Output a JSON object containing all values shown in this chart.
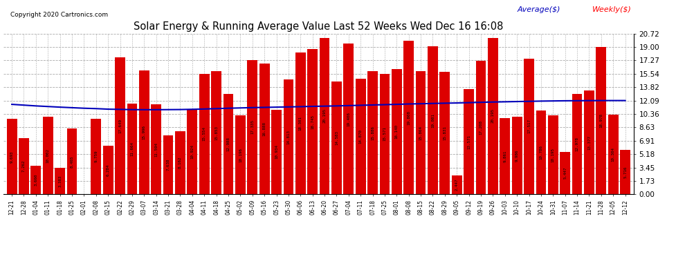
{
  "title": "Solar Energy & Running Average Value Last 52 Weeks Wed Dec 16 16:08",
  "copyright": "Copyright 2020 Cartronics.com",
  "legend_average": "Average($)",
  "legend_weekly": "Weekly($)",
  "bar_color": "#dd0000",
  "avg_line_color": "#0000bb",
  "background_color": "#ffffff",
  "plot_bg_color": "#ffffff",
  "grid_color": "#aaaaaa",
  "categories": [
    "12-21",
    "12-28",
    "01-04",
    "01-11",
    "01-18",
    "01-25",
    "02-01",
    "02-08",
    "02-15",
    "02-22",
    "02-29",
    "03-07",
    "03-14",
    "03-21",
    "03-28",
    "04-04",
    "04-11",
    "04-18",
    "04-25",
    "05-02",
    "05-09",
    "05-16",
    "05-23",
    "05-30",
    "06-06",
    "06-13",
    "06-20",
    "06-27",
    "07-04",
    "07-11",
    "07-18",
    "07-25",
    "08-01",
    "08-08",
    "08-15",
    "08-22",
    "08-29",
    "09-05",
    "09-12",
    "09-19",
    "09-26",
    "10-03",
    "10-10",
    "10-17",
    "10-24",
    "10-31",
    "11-07",
    "11-14",
    "11-21",
    "11-28",
    "12-05",
    "12-12"
  ],
  "weekly_values": [
    9.693,
    7.262,
    3.66,
    10.002,
    3.383,
    8.465,
    0.008,
    9.759,
    6.284,
    17.649,
    11.664,
    15.996,
    11.594,
    7.638,
    8.162,
    10.924,
    15.554,
    15.853,
    12.988,
    10.196,
    17.335,
    16.888,
    10.934,
    14.813,
    18.301,
    18.745,
    20.195,
    14.583,
    19.406,
    14.87,
    15.886,
    15.571,
    16.14,
    19.808,
    15.864,
    19.081,
    15.831,
    2.447,
    13.571,
    17.208,
    20.195,
    9.861,
    9.986,
    17.517,
    10.786,
    10.195,
    5.447,
    12.978,
    13.377,
    18.978,
    10.304,
    5.716
  ],
  "avg_values": [
    11.6,
    11.5,
    11.4,
    11.32,
    11.24,
    11.17,
    11.1,
    11.05,
    10.98,
    10.95,
    10.92,
    10.91,
    10.91,
    10.92,
    10.93,
    10.96,
    11.0,
    11.05,
    11.1,
    11.14,
    11.18,
    11.21,
    11.24,
    11.27,
    11.3,
    11.34,
    11.37,
    11.4,
    11.44,
    11.48,
    11.52,
    11.56,
    11.6,
    11.65,
    11.68,
    11.72,
    11.75,
    11.78,
    11.82,
    11.86,
    11.9,
    11.93,
    11.96,
    11.99,
    12.02,
    12.04,
    12.06,
    12.07,
    12.08,
    12.09,
    12.09,
    12.09
  ],
  "yticks": [
    0.0,
    1.73,
    3.45,
    5.18,
    6.91,
    8.63,
    10.36,
    12.09,
    13.82,
    15.54,
    17.27,
    19.0,
    20.72
  ],
  "ylim": [
    0.0,
    20.72
  ]
}
